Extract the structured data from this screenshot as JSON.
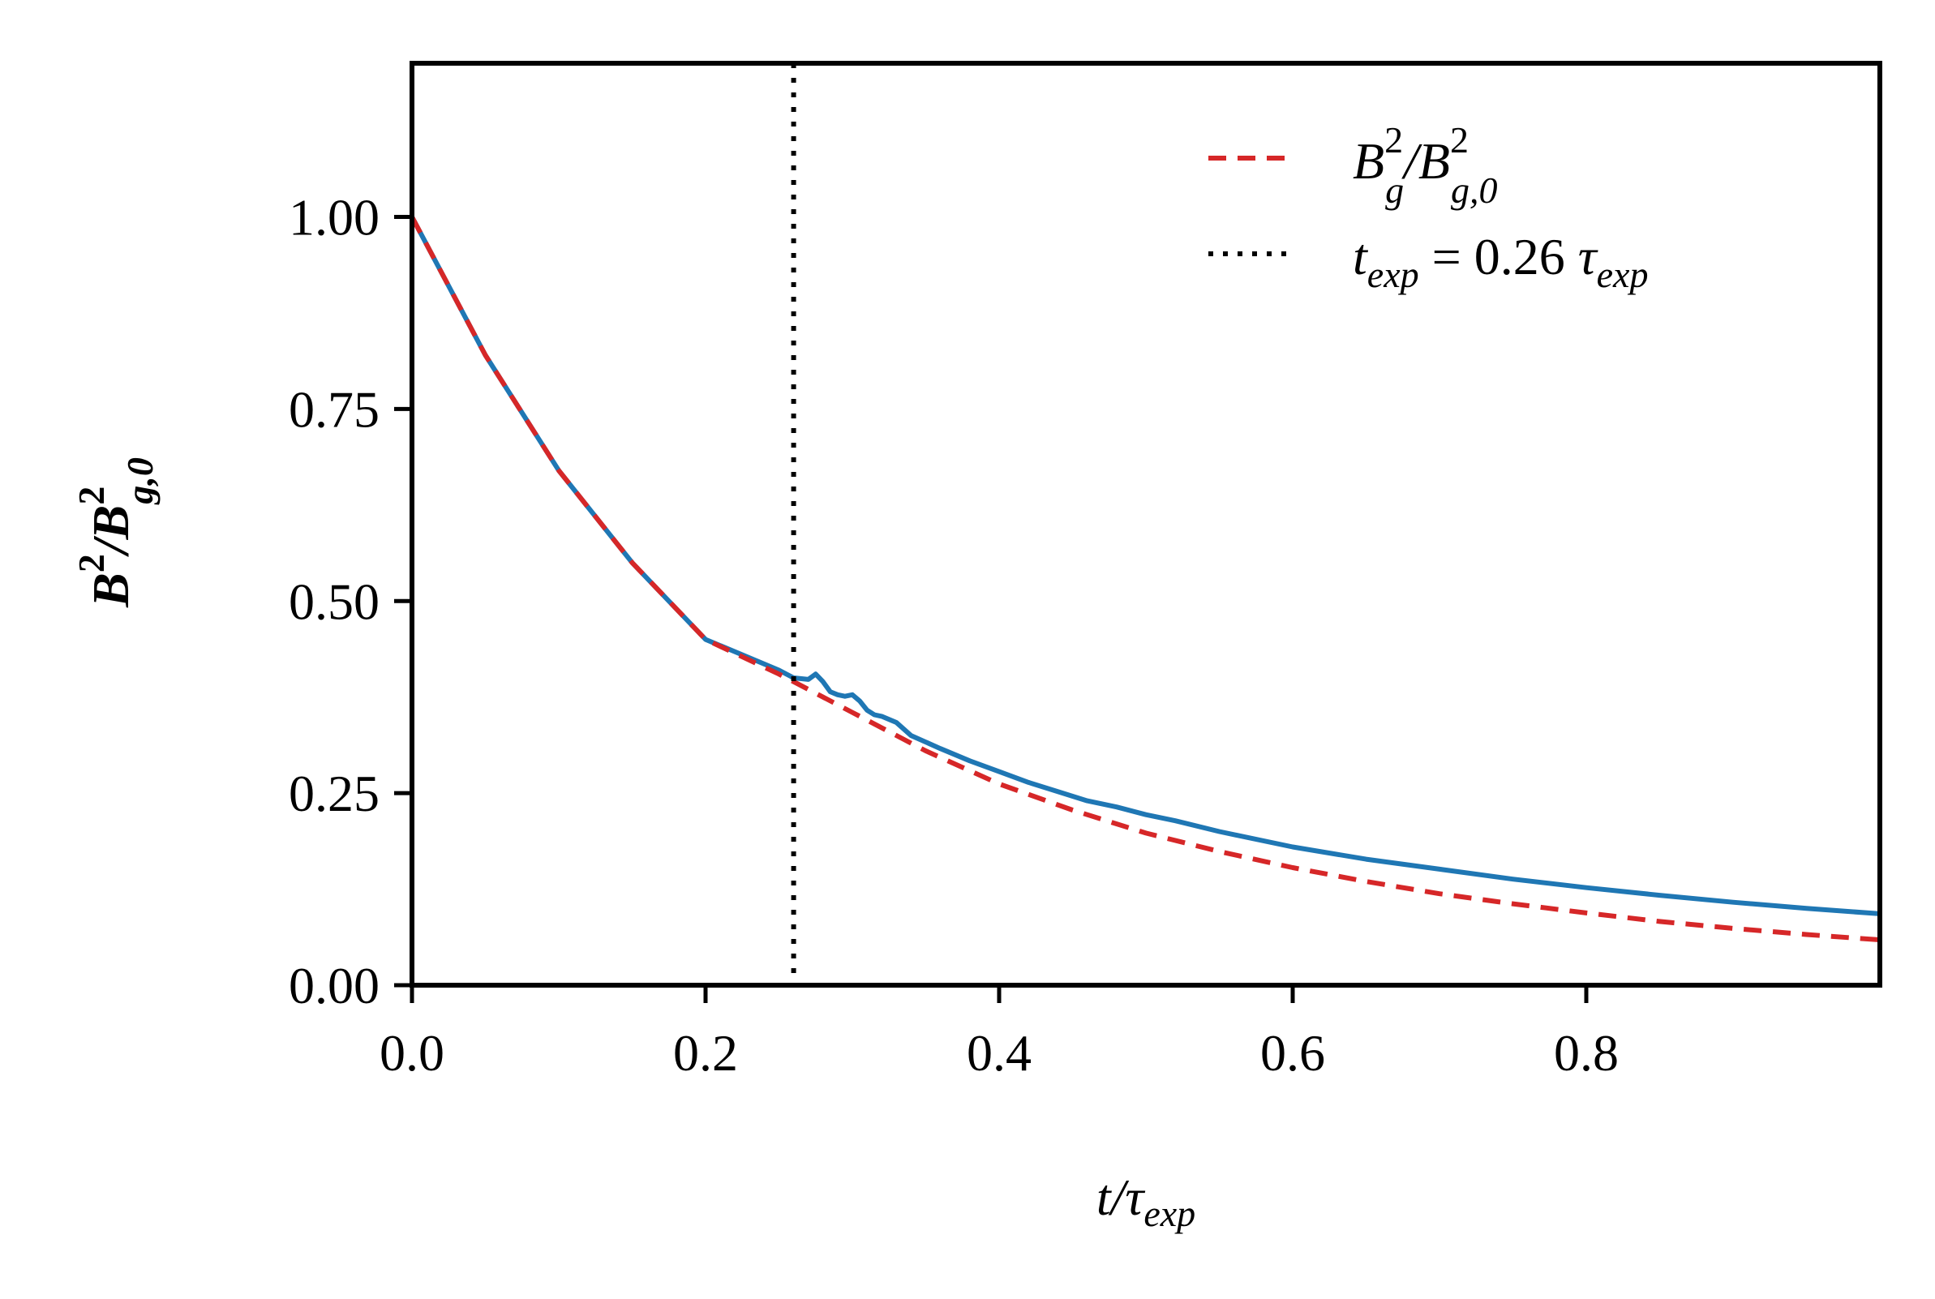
{
  "chart_data": {
    "type": "line",
    "xlabel": {
      "main": "t/τ",
      "sub": "exp"
    },
    "ylabel": {
      "parts": [
        "B",
        "2",
        "/B",
        "2",
        "g,0"
      ]
    },
    "xlim": [
      0.0,
      1.0
    ],
    "ylim": [
      0.0,
      1.2
    ],
    "xticks": [
      0.0,
      0.2,
      0.4,
      0.6,
      0.8
    ],
    "xtick_labels": [
      "0.0",
      "0.2",
      "0.4",
      "0.6",
      "0.8"
    ],
    "yticks": [
      0.0,
      0.25,
      0.5,
      0.75,
      1.0
    ],
    "ytick_labels": [
      "0.00",
      "0.25",
      "0.50",
      "0.75",
      "1.00"
    ],
    "vline": {
      "x": 0.26,
      "style": "dotted",
      "color": "#000000"
    },
    "legend": {
      "placement": "top-right",
      "entries": [
        {
          "label": {
            "base": "B",
            "sub1": "g",
            "sup1": "2",
            "mid": "/B",
            "sub2": "g,0",
            "sup2": "2"
          },
          "style": "dashed",
          "color": "#d62728"
        },
        {
          "label": {
            "t": "t",
            "tsub": "exp",
            "eq": " = 0.26 ",
            "tau": "τ",
            "tausub": "exp"
          },
          "style": "dotted",
          "color": "#000000"
        }
      ]
    },
    "series": [
      {
        "color": "#1f77b4",
        "style": "solid",
        "x": [
          0.0,
          0.05,
          0.1,
          0.15,
          0.2,
          0.25,
          0.26,
          0.27,
          0.275,
          0.28,
          0.285,
          0.29,
          0.295,
          0.3,
          0.305,
          0.31,
          0.315,
          0.32,
          0.33,
          0.34,
          0.36,
          0.38,
          0.4,
          0.42,
          0.44,
          0.46,
          0.48,
          0.5,
          0.52,
          0.55,
          0.6,
          0.65,
          0.7,
          0.75,
          0.8,
          0.85,
          0.9,
          0.95,
          1.0
        ],
        "y": [
          1.0,
          0.82,
          0.67,
          0.55,
          0.45,
          0.41,
          0.4,
          0.398,
          0.405,
          0.395,
          0.382,
          0.378,
          0.376,
          0.378,
          0.37,
          0.358,
          0.352,
          0.35,
          0.342,
          0.325,
          0.308,
          0.292,
          0.278,
          0.264,
          0.252,
          0.24,
          0.232,
          0.222,
          0.214,
          0.2,
          0.18,
          0.164,
          0.151,
          0.138,
          0.127,
          0.117,
          0.108,
          0.1,
          0.093
        ]
      },
      {
        "color": "#d62728",
        "style": "dashed",
        "x": [
          0.0,
          0.05,
          0.1,
          0.15,
          0.2,
          0.25,
          0.26,
          0.3,
          0.35,
          0.4,
          0.45,
          0.5,
          0.55,
          0.6,
          0.65,
          0.7,
          0.75,
          0.8,
          0.85,
          0.9,
          0.95,
          1.0
        ],
        "y": [
          1.0,
          0.82,
          0.67,
          0.55,
          0.45,
          0.405,
          0.395,
          0.355,
          0.305,
          0.262,
          0.228,
          0.198,
          0.174,
          0.153,
          0.135,
          0.119,
          0.106,
          0.094,
          0.083,
          0.074,
          0.066,
          0.059
        ]
      }
    ]
  }
}
